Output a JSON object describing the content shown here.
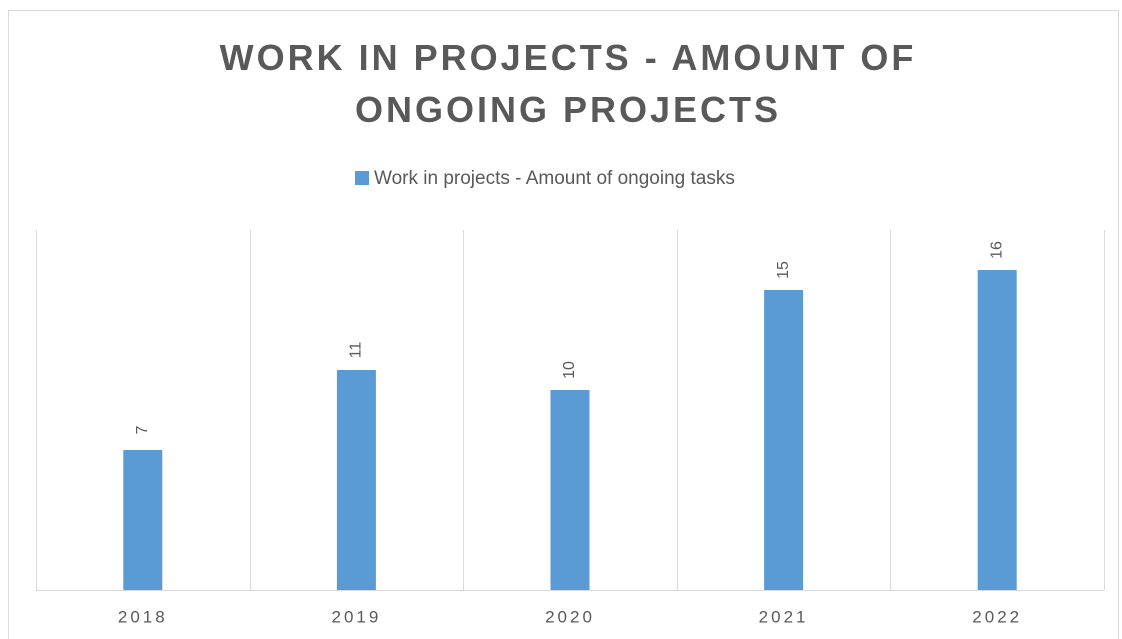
{
  "chart_data": {
    "type": "bar",
    "title": "WORK IN PROJECTS - AMOUNT OF ONGOING PROJECTS",
    "categories": [
      "2018",
      "2019",
      "2020",
      "2021",
      "2022"
    ],
    "series": [
      {
        "name": "Work in projects - Amount of ongoing tasks",
        "color": "#5b9bd5",
        "values": [
          7,
          11,
          10,
          15,
          16
        ]
      }
    ],
    "ylim": [
      0,
      18
    ],
    "legend": "top"
  }
}
